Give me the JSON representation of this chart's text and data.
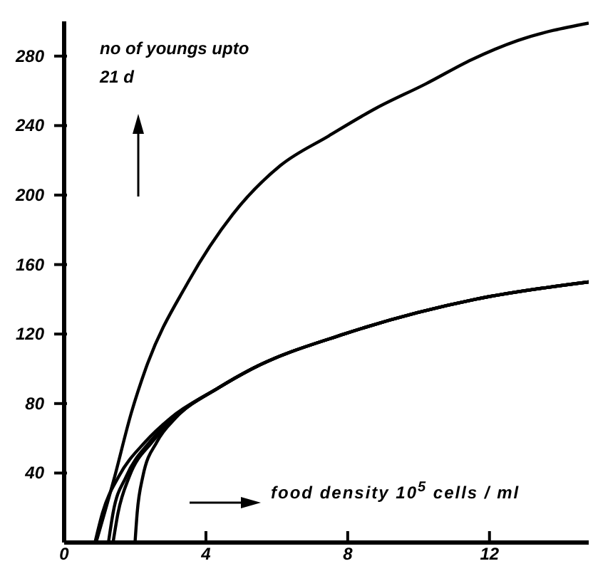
{
  "chart_data": {
    "type": "line",
    "xlabel": "food density 10$^{5}$ cells / ml",
    "ylabel": "no of youngs upto 21 d",
    "xlim": [
      0,
      14.8
    ],
    "ylim": [
      0,
      300
    ],
    "xticks": [
      0,
      4,
      8,
      12
    ],
    "yticks": [
      40,
      80,
      120,
      160,
      200,
      240,
      280
    ],
    "grid": false,
    "marker": "none",
    "line_style": "solid",
    "series": [
      {
        "color": "#000000",
        "x": [
          0.9,
          1.4,
          1.9,
          2.3,
          3.5,
          4.76,
          6.1,
          7.46,
          8.8,
          10.2,
          11.5,
          12.8,
          14.8
        ],
        "values": [
          0,
          36,
          75,
          100,
          150,
          189,
          217,
          234,
          250,
          264,
          278,
          289,
          299
        ]
      },
      {
        "color": "#000000",
        "x": [
          0.87,
          1.08,
          1.54,
          2.29,
          3.02,
          4.35,
          5.3,
          7.9,
          11.6,
          14.8
        ],
        "values": [
          0,
          17,
          38,
          58,
          72,
          89,
          100,
          120,
          140,
          150
        ]
      },
      {
        "color": "#000000",
        "x": [
          1.25,
          1.38,
          1.75,
          2.42,
          3.09,
          4.35,
          5.3,
          7.9,
          11.6,
          14.8
        ],
        "values": [
          0,
          17,
          38,
          58,
          72,
          89,
          100,
          120,
          140,
          150
        ]
      },
      {
        "color": "#000000",
        "x": [
          1.38,
          1.52,
          1.84,
          2.49,
          3.13,
          4.35,
          5.3,
          7.9,
          11.6,
          14.8
        ],
        "values": [
          0,
          17,
          38,
          58,
          72,
          89,
          100,
          120,
          140,
          150
        ]
      },
      {
        "color": "#000000",
        "x": [
          2.0,
          2.06,
          2.22,
          2.62,
          3.16,
          4.35,
          5.3,
          7.9,
          11.6,
          14.8
        ],
        "values": [
          0,
          17,
          38,
          58,
          72,
          89,
          100,
          120,
          140,
          150
        ]
      }
    ]
  }
}
